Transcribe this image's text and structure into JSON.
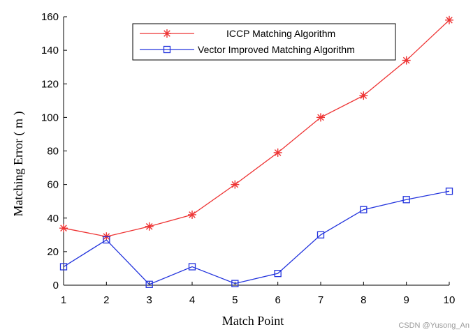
{
  "chart_data": {
    "type": "line",
    "title": "",
    "xlabel": "Match Point",
    "ylabel": "Matching Error ( m )",
    "x": [
      1,
      2,
      3,
      4,
      5,
      6,
      7,
      8,
      9,
      10
    ],
    "xlim": [
      1,
      10
    ],
    "ylim": [
      0,
      160
    ],
    "xticks": [
      "1",
      "2",
      "3",
      "4",
      "5",
      "6",
      "7",
      "8",
      "9",
      "10"
    ],
    "yticks": [
      "0",
      "20",
      "40",
      "60",
      "80",
      "100",
      "120",
      "140",
      "160"
    ],
    "grid": false,
    "legend_position": "top-center",
    "series": [
      {
        "name": "ICCP Matching Algorithm",
        "color": "#ee3333",
        "marker": "asterisk",
        "values": [
          34,
          29,
          35,
          42,
          60,
          79,
          100,
          113,
          134,
          158
        ]
      },
      {
        "name": "Vector Improved Matching Algorithm",
        "color": "#2233dd",
        "marker": "square",
        "values": [
          11,
          27,
          0.5,
          11,
          1,
          7,
          30,
          45,
          51,
          56
        ]
      }
    ]
  },
  "watermark": "CSDN @Yusong_An"
}
